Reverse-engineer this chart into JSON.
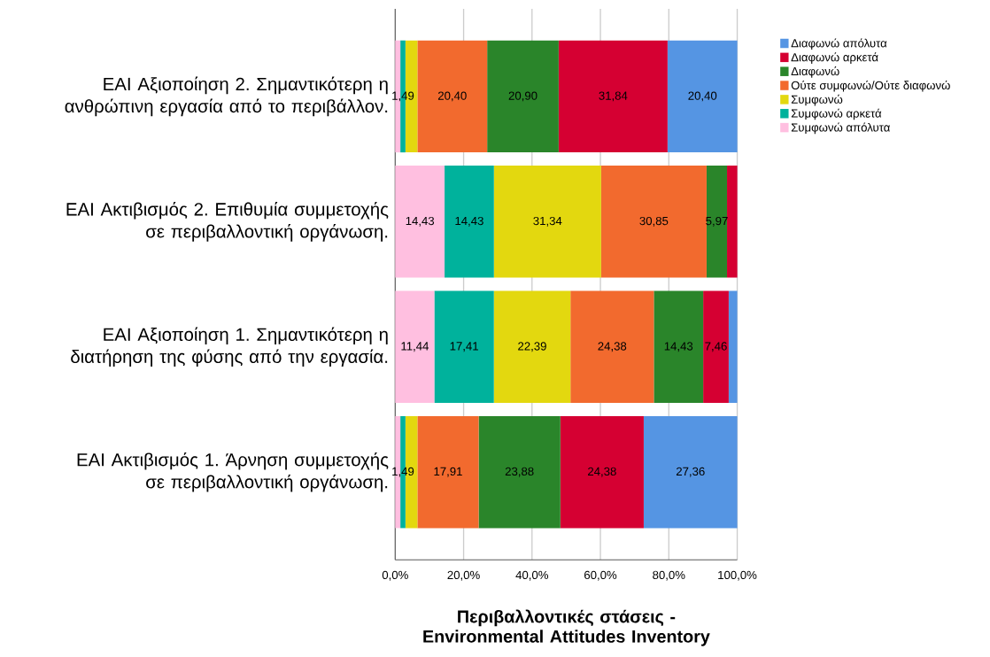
{
  "chart_data": {
    "type": "bar",
    "orientation": "horizontal",
    "stacked": true,
    "xlabel": "**Περιβαλλοντικές στάσεις - Environmental Attitudes Inventory**",
    "categories": [
      "ΕΑΙ Αξιοποίηση 2. Σημαντικότερη η ανθρώπινη εργασία από το περιβάλλον.",
      "ΕΑΙ Ακτιβισμός 2. Επιθυμία συμμετοχής σε περιβαλλοντική οργάνωση.",
      "ΕΑΙ Αξιοποίηση 1. Σημαντικότερη η διατήρηση της φύσης από την εργασία.",
      "ΕΑΙ Ακτιβισμός 1. Άρνηση συμμετοχής σε περιβαλλοντική οργάνωση."
    ],
    "series": [
      {
        "name": "Συμφωνώ απόλυτα",
        "color": "#ffbfe0",
        "values": [
          1.5,
          14.43,
          11.44,
          1.5
        ],
        "value_labels": [
          null,
          "14,43",
          "11,44",
          null
        ]
      },
      {
        "name": "Συμφωνώ αρκετά",
        "color": "#00b29c",
        "values": [
          1.49,
          14.43,
          17.41,
          1.49
        ],
        "value_labels": [
          "1,49",
          "14,43",
          "17,41",
          "1,49"
        ]
      },
      {
        "name": "Συμφωνώ",
        "color": "#e3d80f",
        "values": [
          3.5,
          31.34,
          22.39,
          3.5
        ],
        "value_labels": [
          null,
          "31,34",
          "22,39",
          null
        ]
      },
      {
        "name": "Ούτε συμφωνώ/Ούτε διαφωνώ",
        "color": "#f26a2e",
        "values": [
          20.4,
          30.85,
          24.38,
          17.91
        ],
        "value_labels": [
          "20,40",
          "30,85",
          "24,38",
          "17,91"
        ]
      },
      {
        "name": "Διαφωνώ",
        "color": "#2a852a",
        "values": [
          20.9,
          5.97,
          14.43,
          23.88
        ],
        "value_labels": [
          "20,90",
          "5,97",
          "14,43",
          "23,88"
        ]
      },
      {
        "name": "Διαφωνώ αρκετά",
        "color": "#d50032",
        "values": [
          31.84,
          3,
          7.46,
          24.38
        ],
        "value_labels": [
          "31,84",
          null,
          "7,46",
          "24,38"
        ]
      },
      {
        "name": "Διαφωνώ απόλυτα",
        "color": "#5595e3",
        "values": [
          20.4,
          0,
          2.5,
          27.36
        ],
        "value_labels": [
          "20,40",
          null,
          null,
          "27,36"
        ]
      }
    ],
    "xlim": [
      0,
      100
    ],
    "xticks": [
      {
        "value": 0,
        "label": "0,0%"
      },
      {
        "value": 20,
        "label": "20,0%"
      },
      {
        "value": 40,
        "label": "40,0%"
      },
      {
        "value": 60,
        "label": "60,0%"
      },
      {
        "value": 80,
        "label": "80,0%"
      },
      {
        "value": 100,
        "label": "100,0%"
      }
    ],
    "grid": "x",
    "legend": "right"
  }
}
